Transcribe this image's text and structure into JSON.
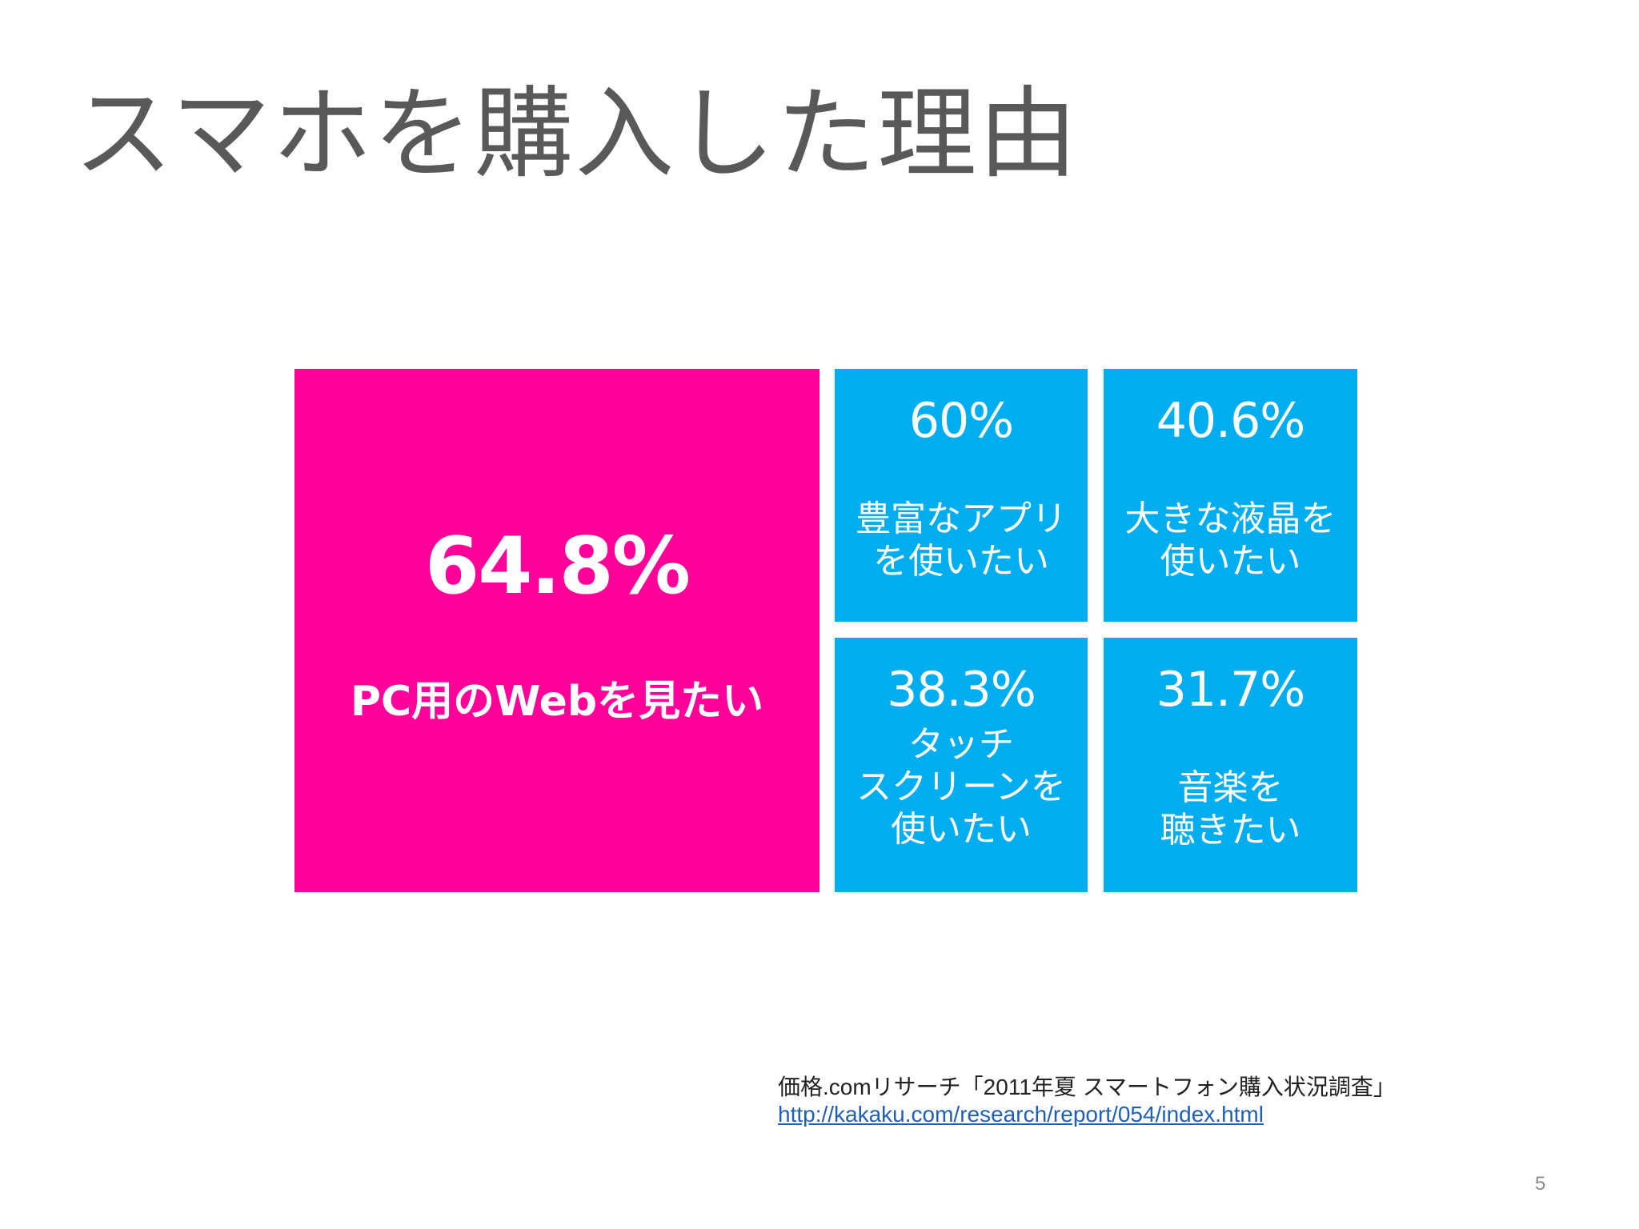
{
  "slide": {
    "title": "スマホを購入した理由",
    "page_number": "5"
  },
  "chart_data": {
    "type": "table",
    "colors": {
      "highlight": "#ff0099",
      "tile": "#00aeef",
      "text": "#ffffff"
    },
    "items": [
      {
        "value": 64.8,
        "percent_label": "64.8%",
        "label": "PC用のWebを見たい"
      },
      {
        "value": 60,
        "percent_label": "60%",
        "label": "豊富なアプリ\nを使いたい"
      },
      {
        "value": 40.6,
        "percent_label": "40.6%",
        "label": "大きな液晶を\n使いたい"
      },
      {
        "value": 38.3,
        "percent_label": "38.3%",
        "label": "タッチ\nスクリーンを\n使いたい"
      },
      {
        "value": 31.7,
        "percent_label": "31.7%",
        "label": "音楽を\n聴きたい"
      }
    ]
  },
  "source": {
    "citation": "価格.comリサーチ「2011年夏 スマートフォン購入状況調査」",
    "url": "http://kakaku.com/research/report/054/index.html"
  }
}
